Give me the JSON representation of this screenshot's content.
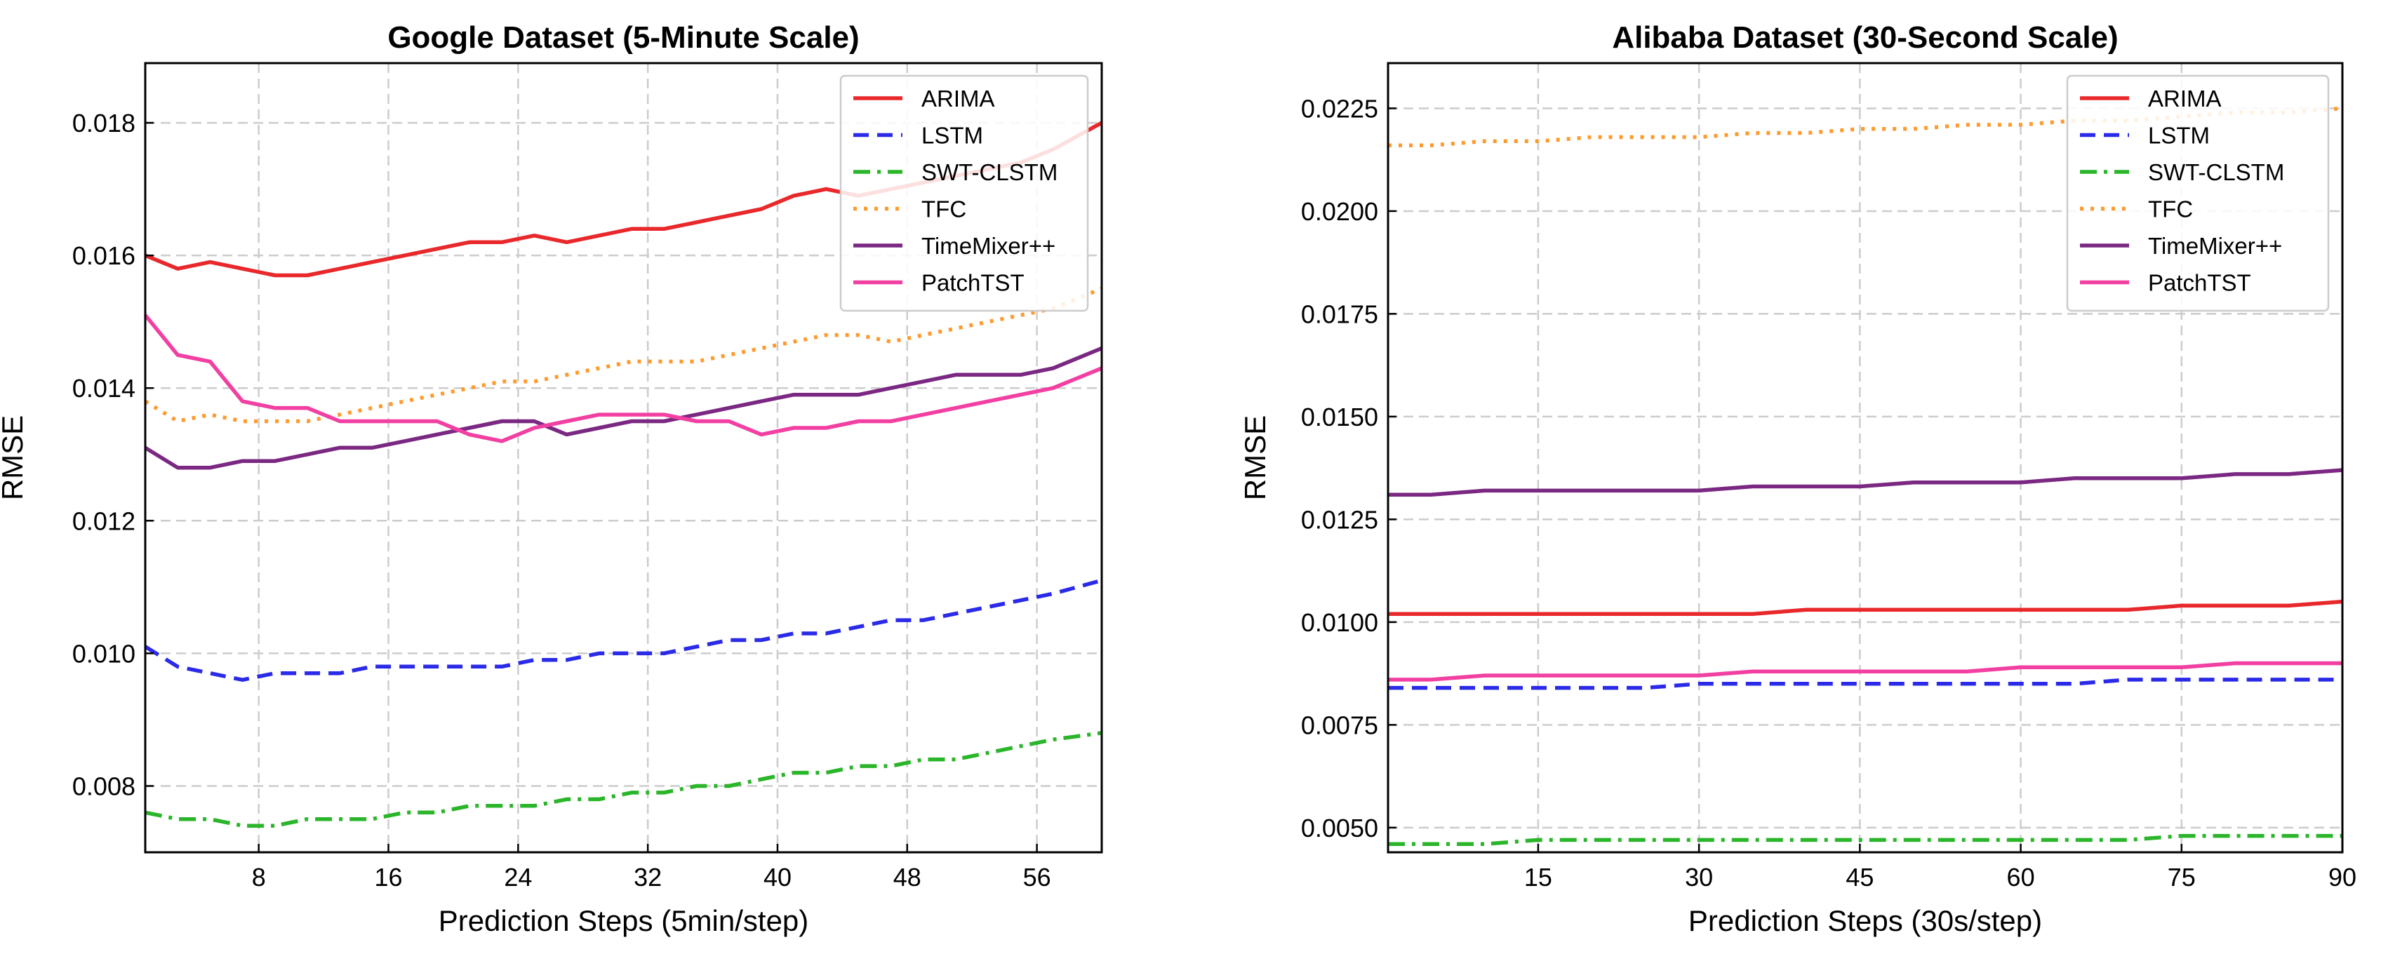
{
  "chart_data": [
    {
      "type": "line",
      "title": "Google Dataset (5-Minute Scale)",
      "xlabel": "Prediction Steps (5min/step)",
      "ylabel": "RMSE",
      "xlim": [
        1,
        60
      ],
      "ylim": [
        0.007,
        0.0189
      ],
      "xticks": [
        8,
        16,
        24,
        32,
        40,
        48,
        56
      ],
      "xtick_labels": [
        "8",
        "16",
        "24",
        "32",
        "40",
        "48",
        "56"
      ],
      "yticks": [
        0.008,
        0.01,
        0.012,
        0.014,
        0.016,
        0.018
      ],
      "ytick_labels": [
        "0.008",
        "0.010",
        "0.012",
        "0.014",
        "0.016",
        "0.018"
      ],
      "grid": true,
      "legend_position": "top-right",
      "x": [
        1,
        3,
        5,
        7,
        9,
        11,
        13,
        15,
        17,
        19,
        21,
        23,
        25,
        27,
        29,
        31,
        33,
        35,
        37,
        39,
        41,
        43,
        45,
        47,
        49,
        51,
        53,
        55,
        57,
        60
      ],
      "series": [
        {
          "name": "ARIMA",
          "color": "#e8282b",
          "dash": "solid",
          "values": [
            0.016,
            0.0158,
            0.0159,
            0.0158,
            0.0157,
            0.0157,
            0.0158,
            0.0159,
            0.016,
            0.0161,
            0.0162,
            0.0162,
            0.0163,
            0.0162,
            0.0163,
            0.0164,
            0.0164,
            0.0165,
            0.0166,
            0.0167,
            0.0169,
            0.017,
            0.0169,
            0.017,
            0.0171,
            0.0172,
            0.0173,
            0.0174,
            0.0176,
            0.018
          ]
        },
        {
          "name": "LSTM",
          "color": "#2a2ae8",
          "dash": "dashed",
          "values": [
            0.0101,
            0.0098,
            0.0097,
            0.0096,
            0.0097,
            0.0097,
            0.0097,
            0.0098,
            0.0098,
            0.0098,
            0.0098,
            0.0098,
            0.0099,
            0.0099,
            0.01,
            0.01,
            0.01,
            0.0101,
            0.0102,
            0.0102,
            0.0103,
            0.0103,
            0.0104,
            0.0105,
            0.0105,
            0.0106,
            0.0107,
            0.0108,
            0.0109,
            0.0111
          ]
        },
        {
          "name": "SWT-CLSTM",
          "color": "#2ab52a",
          "dash": "dashdot",
          "values": [
            0.0076,
            0.0075,
            0.0075,
            0.0074,
            0.0074,
            0.0075,
            0.0075,
            0.0075,
            0.0076,
            0.0076,
            0.0077,
            0.0077,
            0.0077,
            0.0078,
            0.0078,
            0.0079,
            0.0079,
            0.008,
            0.008,
            0.0081,
            0.0082,
            0.0082,
            0.0083,
            0.0083,
            0.0084,
            0.0084,
            0.0085,
            0.0086,
            0.0087,
            0.0088
          ]
        },
        {
          "name": "TFC",
          "color": "#ff9a2e",
          "dash": "dotted",
          "values": [
            0.0138,
            0.0135,
            0.0136,
            0.0135,
            0.0135,
            0.0135,
            0.0136,
            0.0137,
            0.0138,
            0.0139,
            0.014,
            0.0141,
            0.0141,
            0.0142,
            0.0143,
            0.0144,
            0.0144,
            0.0144,
            0.0145,
            0.0146,
            0.0147,
            0.0148,
            0.0148,
            0.0147,
            0.0148,
            0.0149,
            0.015,
            0.0151,
            0.0152,
            0.0155
          ]
        },
        {
          "name": "TimeMixer++",
          "color": "#7a2882",
          "dash": "solid",
          "values": [
            0.0131,
            0.0128,
            0.0128,
            0.0129,
            0.0129,
            0.013,
            0.0131,
            0.0131,
            0.0132,
            0.0133,
            0.0134,
            0.0135,
            0.0135,
            0.0133,
            0.0134,
            0.0135,
            0.0135,
            0.0136,
            0.0137,
            0.0138,
            0.0139,
            0.0139,
            0.0139,
            0.014,
            0.0141,
            0.0142,
            0.0142,
            0.0142,
            0.0143,
            0.0146
          ]
        },
        {
          "name": "PatchTST",
          "color": "#f23fa2",
          "dash": "solid",
          "values": [
            0.0151,
            0.0145,
            0.0144,
            0.0138,
            0.0137,
            0.0137,
            0.0135,
            0.0135,
            0.0135,
            0.0135,
            0.0133,
            0.0132,
            0.0134,
            0.0135,
            0.0136,
            0.0136,
            0.0136,
            0.0135,
            0.0135,
            0.0133,
            0.0134,
            0.0134,
            0.0135,
            0.0135,
            0.0136,
            0.0137,
            0.0138,
            0.0139,
            0.014,
            0.0143
          ]
        }
      ]
    },
    {
      "type": "line",
      "title": "Alibaba Dataset (30-Second Scale)",
      "xlabel": "Prediction Steps (30s/step)",
      "ylabel": "RMSE",
      "xlim": [
        1,
        90
      ],
      "ylim": [
        0.0044,
        0.0236
      ],
      "xticks": [
        15,
        30,
        45,
        60,
        75,
        90
      ],
      "xtick_labels": [
        "15",
        "30",
        "45",
        "60",
        "75",
        "90"
      ],
      "yticks": [
        0.005,
        0.0075,
        0.01,
        0.0125,
        0.015,
        0.0175,
        0.02,
        0.0225
      ],
      "ytick_labels": [
        "0.0050",
        "0.0075",
        "0.0100",
        "0.0125",
        "0.0150",
        "0.0175",
        "0.0200",
        "0.0225"
      ],
      "grid": true,
      "legend_position": "top-right",
      "x": [
        1,
        5,
        10,
        15,
        20,
        25,
        30,
        35,
        40,
        45,
        50,
        55,
        60,
        65,
        70,
        75,
        80,
        85,
        90
      ],
      "series": [
        {
          "name": "ARIMA",
          "color": "#e8282b",
          "dash": "solid",
          "values": [
            0.0102,
            0.0102,
            0.0102,
            0.0102,
            0.0102,
            0.0102,
            0.0102,
            0.0102,
            0.0103,
            0.0103,
            0.0103,
            0.0103,
            0.0103,
            0.0103,
            0.0103,
            0.0104,
            0.0104,
            0.0104,
            0.0105
          ]
        },
        {
          "name": "LSTM",
          "color": "#2a2ae8",
          "dash": "dashed",
          "values": [
            0.0084,
            0.0084,
            0.0084,
            0.0084,
            0.0084,
            0.0084,
            0.0085,
            0.0085,
            0.0085,
            0.0085,
            0.0085,
            0.0085,
            0.0085,
            0.0085,
            0.0086,
            0.0086,
            0.0086,
            0.0086,
            0.0086
          ]
        },
        {
          "name": "SWT-CLSTM",
          "color": "#2ab52a",
          "dash": "dashdot",
          "values": [
            0.0046,
            0.0046,
            0.0046,
            0.0047,
            0.0047,
            0.0047,
            0.0047,
            0.0047,
            0.0047,
            0.0047,
            0.0047,
            0.0047,
            0.0047,
            0.0047,
            0.0047,
            0.0048,
            0.0048,
            0.0048,
            0.0048
          ]
        },
        {
          "name": "TFC",
          "color": "#ff9a2e",
          "dash": "dotted",
          "values": [
            0.0216,
            0.0216,
            0.0217,
            0.0217,
            0.0218,
            0.0218,
            0.0218,
            0.0219,
            0.0219,
            0.022,
            0.022,
            0.0221,
            0.0221,
            0.0222,
            0.0222,
            0.0223,
            0.0224,
            0.0224,
            0.0225
          ]
        },
        {
          "name": "TimeMixer++",
          "color": "#7a2882",
          "dash": "solid",
          "values": [
            0.0131,
            0.0131,
            0.0132,
            0.0132,
            0.0132,
            0.0132,
            0.0132,
            0.0133,
            0.0133,
            0.0133,
            0.0134,
            0.0134,
            0.0134,
            0.0135,
            0.0135,
            0.0135,
            0.0136,
            0.0136,
            0.0137
          ]
        },
        {
          "name": "PatchTST",
          "color": "#f23fa2",
          "dash": "solid",
          "values": [
            0.0086,
            0.0086,
            0.0087,
            0.0087,
            0.0087,
            0.0087,
            0.0087,
            0.0088,
            0.0088,
            0.0088,
            0.0088,
            0.0088,
            0.0089,
            0.0089,
            0.0089,
            0.0089,
            0.009,
            0.009,
            0.009
          ]
        }
      ]
    }
  ]
}
